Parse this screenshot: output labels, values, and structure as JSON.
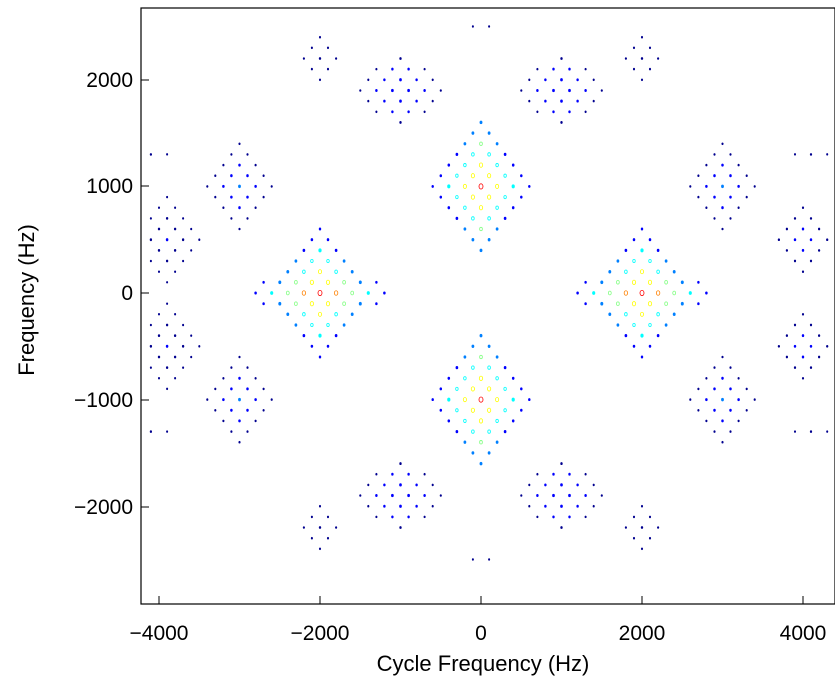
{
  "chart_data": {
    "type": "scatter",
    "title": "",
    "xlabel": "Cycle Frequency (Hz)",
    "ylabel": "Frequency (Hz)",
    "xlim": [
      -4200,
      4450
    ],
    "ylim": [
      -2900,
      2700
    ],
    "xticks": [
      -4000,
      -2000,
      0,
      2000,
      4000
    ],
    "yticks": [
      -2000,
      -1000,
      0,
      1000,
      2000
    ],
    "xtick_labels": [
      "−4000",
      "−2000",
      "0",
      "2000",
      "4000"
    ],
    "ytick_labels": [
      "−2000",
      "−1000",
      "0",
      "1000",
      "2000"
    ],
    "grid": false,
    "legend": "none",
    "lattice_spacing": {
      "x": 100,
      "y": 100
    },
    "blobs": [
      {
        "cx": 0,
        "cy": 1000,
        "rx": 600,
        "ry": 750,
        "peak": 1.0
      },
      {
        "cx": 0,
        "cy": -1000,
        "rx": 600,
        "ry": 750,
        "peak": 1.0
      },
      {
        "cx": -2000,
        "cy": 0,
        "rx": 850,
        "ry": 600,
        "peak": 1.0
      },
      {
        "cx": 2000,
        "cy": 0,
        "rx": 850,
        "ry": 600,
        "peak": 1.0
      },
      {
        "cx": -1000,
        "cy": 1900,
        "rx": 550,
        "ry": 450,
        "peak": 0.3
      },
      {
        "cx": 1000,
        "cy": 1900,
        "rx": 550,
        "ry": 450,
        "peak": 0.3
      },
      {
        "cx": -1000,
        "cy": -1900,
        "rx": 550,
        "ry": 450,
        "peak": 0.3
      },
      {
        "cx": 1000,
        "cy": -1900,
        "rx": 550,
        "ry": 450,
        "peak": 0.3
      },
      {
        "cx": -3000,
        "cy": 1000,
        "rx": 450,
        "ry": 450,
        "peak": 0.3
      },
      {
        "cx": 3000,
        "cy": 1000,
        "rx": 450,
        "ry": 450,
        "peak": 0.3
      },
      {
        "cx": -3000,
        "cy": -1000,
        "rx": 450,
        "ry": 450,
        "peak": 0.3
      },
      {
        "cx": 3000,
        "cy": -1000,
        "rx": 450,
        "ry": 450,
        "peak": 0.3
      },
      {
        "cx": -3900,
        "cy": 500,
        "rx": 450,
        "ry": 400,
        "peak": 0.2
      },
      {
        "cx": -3900,
        "cy": -500,
        "rx": 450,
        "ry": 400,
        "peak": 0.2
      },
      {
        "cx": 4000,
        "cy": 500,
        "rx": 450,
        "ry": 400,
        "peak": 0.2
      },
      {
        "cx": 4000,
        "cy": -500,
        "rx": 450,
        "ry": 400,
        "peak": 0.2
      },
      {
        "cx": -2000,
        "cy": 2200,
        "rx": 400,
        "ry": 300,
        "peak": 0.12
      },
      {
        "cx": 2000,
        "cy": 2200,
        "rx": 400,
        "ry": 300,
        "peak": 0.12
      },
      {
        "cx": -2000,
        "cy": -2200,
        "rx": 400,
        "ry": 300,
        "peak": 0.12
      },
      {
        "cx": 2000,
        "cy": -2200,
        "rx": 400,
        "ry": 300,
        "peak": 0.12
      },
      {
        "cx": 0,
        "cy": 2500,
        "rx": 150,
        "ry": 100,
        "peak": 0.08
      },
      {
        "cx": 0,
        "cy": -2500,
        "rx": 150,
        "ry": 100,
        "peak": 0.08
      },
      {
        "cx": -4100,
        "cy": 1300,
        "rx": 300,
        "ry": 150,
        "peak": 0.08
      },
      {
        "cx": -4100,
        "cy": -1300,
        "rx": 300,
        "ry": 150,
        "peak": 0.08
      },
      {
        "cx": 4100,
        "cy": 1300,
        "rx": 300,
        "ry": 150,
        "peak": 0.08
      },
      {
        "cx": 4100,
        "cy": -1300,
        "rx": 300,
        "ry": 150,
        "peak": 0.08
      }
    ],
    "colormap": [
      "#00008f",
      "#0000ff",
      "#0080ff",
      "#00ffff",
      "#80ff80",
      "#ffff00",
      "#ff8000",
      "#ff0000"
    ]
  }
}
